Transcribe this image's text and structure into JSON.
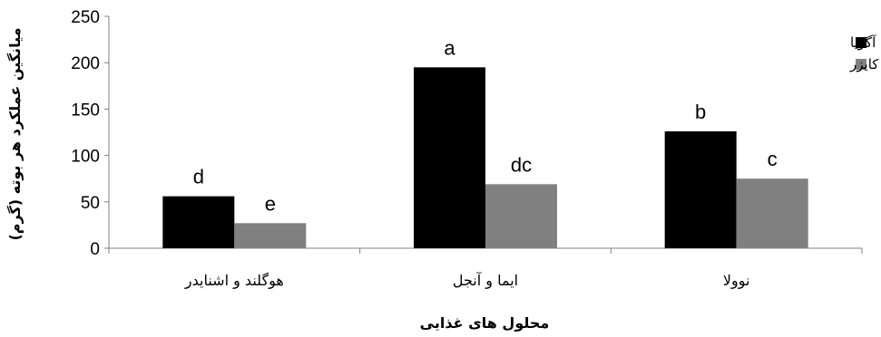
{
  "chart_data": {
    "type": "bar",
    "categories": [
      "هوگلند و اشنایدر",
      "ایما و آنجل",
      "نوولا"
    ],
    "series": [
      {
        "name": "آگریا",
        "color": "#000000",
        "values": [
          56,
          195,
          126
        ],
        "labels": [
          "d",
          "a",
          "b"
        ]
      },
      {
        "name": "کایزر",
        "color": "#808080",
        "values": [
          27,
          69,
          75
        ],
        "labels": [
          "e",
          "dc",
          "c"
        ]
      }
    ],
    "xlabel": "محلول های غذایی",
    "ylabel": "میانگین عملکرد هر بوته (گرم)",
    "ylim": [
      0,
      250
    ],
    "yticks": [
      0,
      50,
      100,
      150,
      200,
      250
    ],
    "grid": false,
    "legend": "top-right"
  }
}
